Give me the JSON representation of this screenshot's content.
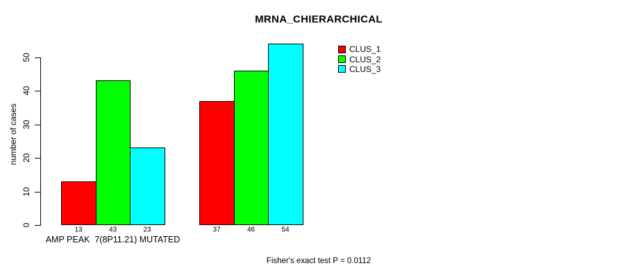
{
  "footer_note": "Fisher's exact test P = 0.0112",
  "chart_data": {
    "type": "bar",
    "title": "MRNA_CHIERARCHICAL",
    "ylabel": "number of cases",
    "xlabel": "",
    "ylim": [
      0,
      55
    ],
    "yticks": [
      0,
      10,
      20,
      30,
      40,
      50
    ],
    "grid": false,
    "legend_position": "top-right",
    "categories": [
      "AMP PEAK  7(8P11.21) MUTATED",
      ""
    ],
    "series": [
      {
        "name": "CLUS_1",
        "color": "#ff0000",
        "values": [
          13,
          37
        ]
      },
      {
        "name": "CLUS_2",
        "color": "#00ff00",
        "values": [
          43,
          46
        ]
      },
      {
        "name": "CLUS_3",
        "color": "#00ffff",
        "values": [
          23,
          54
        ]
      }
    ],
    "bar_value_labels": [
      [
        13,
        43,
        23
      ],
      [
        37,
        46,
        54
      ]
    ],
    "annotation": "Fisher's exact test P = 0.0112"
  }
}
